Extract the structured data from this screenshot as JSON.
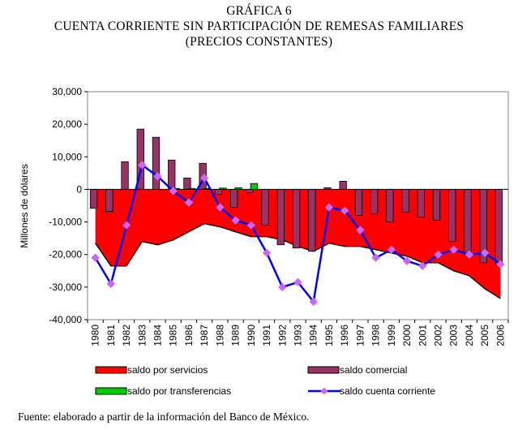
{
  "heading": {
    "line1": "GRÁFICA 6",
    "line2": "CUENTA CORRIENTE SIN PARTICIPACIÓN DE REMESAS FAMILIARES",
    "line3": "(PRECIOS CONSTANTES)"
  },
  "source": "Fuente: elaborado a partir de la información del Banco de México.",
  "chart_data": {
    "type": "bar+area+line",
    "ylabel": "Millones de dólares",
    "xlabel": "",
    "ylim": [
      -40000,
      30000
    ],
    "yticks": [
      30000,
      20000,
      10000,
      0,
      -10000,
      -20000,
      -30000,
      -40000
    ],
    "ytick_labels": [
      "30,000",
      "20,000",
      "10,000",
      "0",
      "-10,000",
      "-20,000",
      "-30,000",
      "-40,000"
    ],
    "categories": [
      "1980",
      "1981",
      "1982",
      "1983",
      "1984",
      "1985",
      "1986",
      "1987",
      "1988",
      "1989",
      "1990",
      "1991",
      "1992",
      "1993",
      "1994",
      "1995",
      "1996",
      "1997",
      "1998",
      "1999",
      "2000",
      "2001",
      "2002",
      "2003",
      "2004",
      "2005",
      "2006"
    ],
    "series": [
      {
        "name": "saldo por servicios",
        "kind": "area",
        "color": "#ff0000",
        "values": [
          -16500,
          -23500,
          -23500,
          -16000,
          -17000,
          -15500,
          -13000,
          -10500,
          -11500,
          -13000,
          -14500,
          -14500,
          -15500,
          -17500,
          -19000,
          -16500,
          -17500,
          -17500,
          -18500,
          -19500,
          -20500,
          -22500,
          -22500,
          -25000,
          -26500,
          -30500,
          -33500
        ]
      },
      {
        "name": "saldo comercial",
        "kind": "bar",
        "color": "#993366",
        "values": [
          -5800,
          -6800,
          8500,
          18500,
          16000,
          9000,
          3500,
          8000,
          -1500,
          -5500,
          -1000,
          -11000,
          -17000,
          -18000,
          -19000,
          500,
          2500,
          -8000,
          -7500,
          -10000,
          -7000,
          -8500,
          -9500,
          -16000,
          -20000,
          -22500,
          -23000
        ]
      },
      {
        "name": "saldo por transferencias",
        "kind": "bar",
        "color": "#00cc00",
        "values": [
          0,
          0,
          0,
          0,
          0,
          300,
          300,
          300,
          400,
          500,
          1800,
          0,
          0,
          0,
          0,
          0,
          0,
          0,
          0,
          0,
          0,
          0,
          0,
          0,
          0,
          0,
          0
        ]
      },
      {
        "name": "saldo cuenta corriente",
        "kind": "line",
        "color": "#0000ff",
        "values": [
          -21000,
          -29000,
          -11000,
          7500,
          4000,
          -500,
          -4000,
          3500,
          -5500,
          -9500,
          -11000,
          -19500,
          -30000,
          -28500,
          -34500,
          -5500,
          -6500,
          -12500,
          -21000,
          -18500,
          -22000,
          -23500,
          -20000,
          -18500,
          -20000,
          -19500,
          -23000
        ]
      }
    ],
    "legend": [
      {
        "label": "saldo por servicios",
        "color": "#ff0000",
        "symbol": "area"
      },
      {
        "label": "saldo comercial",
        "color": "#993366",
        "symbol": "bar"
      },
      {
        "label": "saldo por transferencias",
        "color": "#00cc00",
        "symbol": "bar"
      },
      {
        "label": "saldo cuenta corriente",
        "color": "#0000ff",
        "symbol": "line-diamond",
        "marker_color": "#cc66ff"
      }
    ],
    "legend_position": "bottom"
  }
}
